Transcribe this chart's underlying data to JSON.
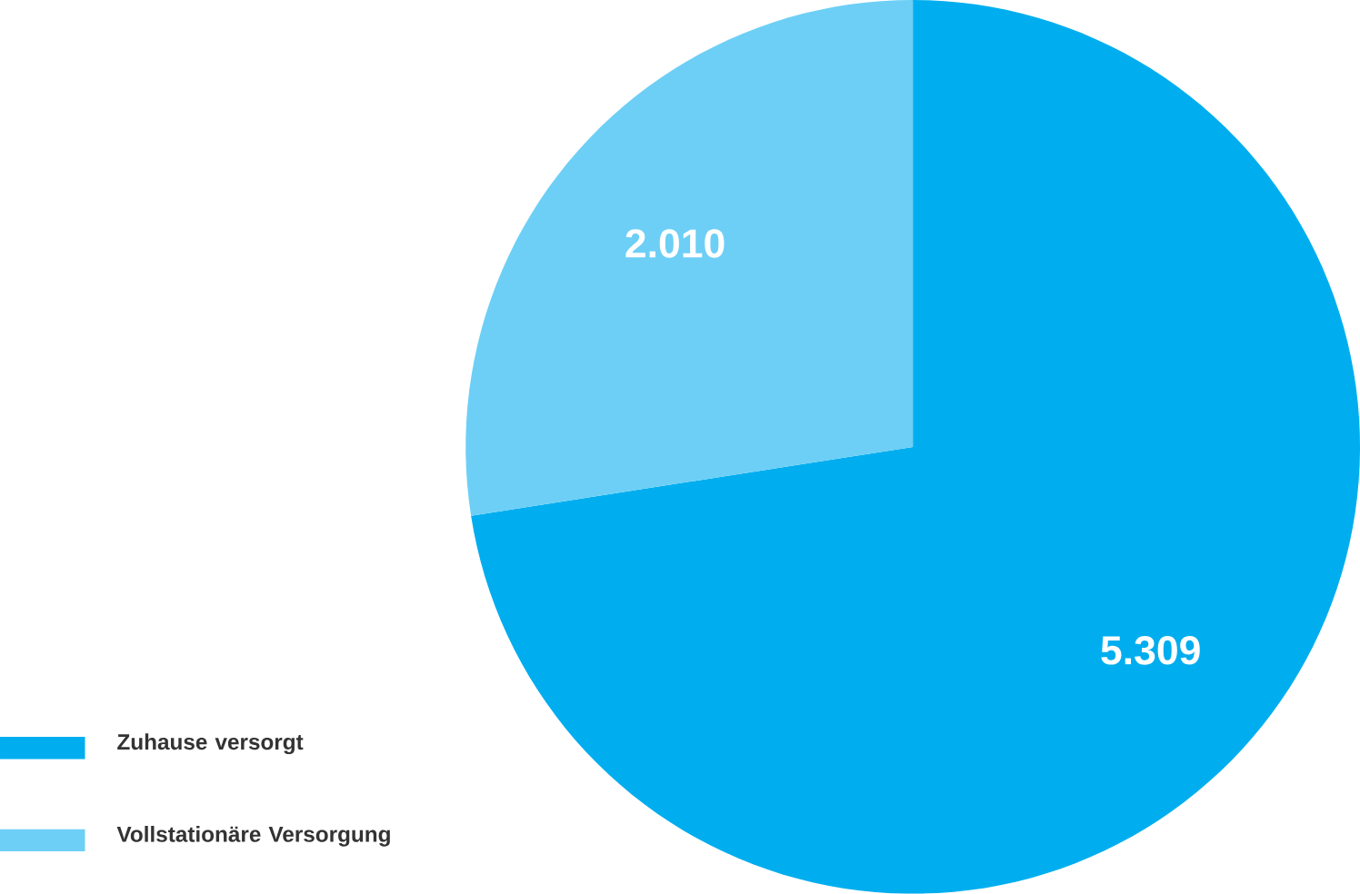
{
  "chart_data": {
    "type": "pie",
    "categories": [
      "Zuhause versorgt",
      "Vollstationäre Versorgung"
    ],
    "values": [
      5309,
      2010
    ],
    "colors": [
      "#00aeef",
      "#6dcff6"
    ],
    "value_labels": [
      "5.309",
      "2.010"
    ],
    "legend": "bottom left"
  }
}
